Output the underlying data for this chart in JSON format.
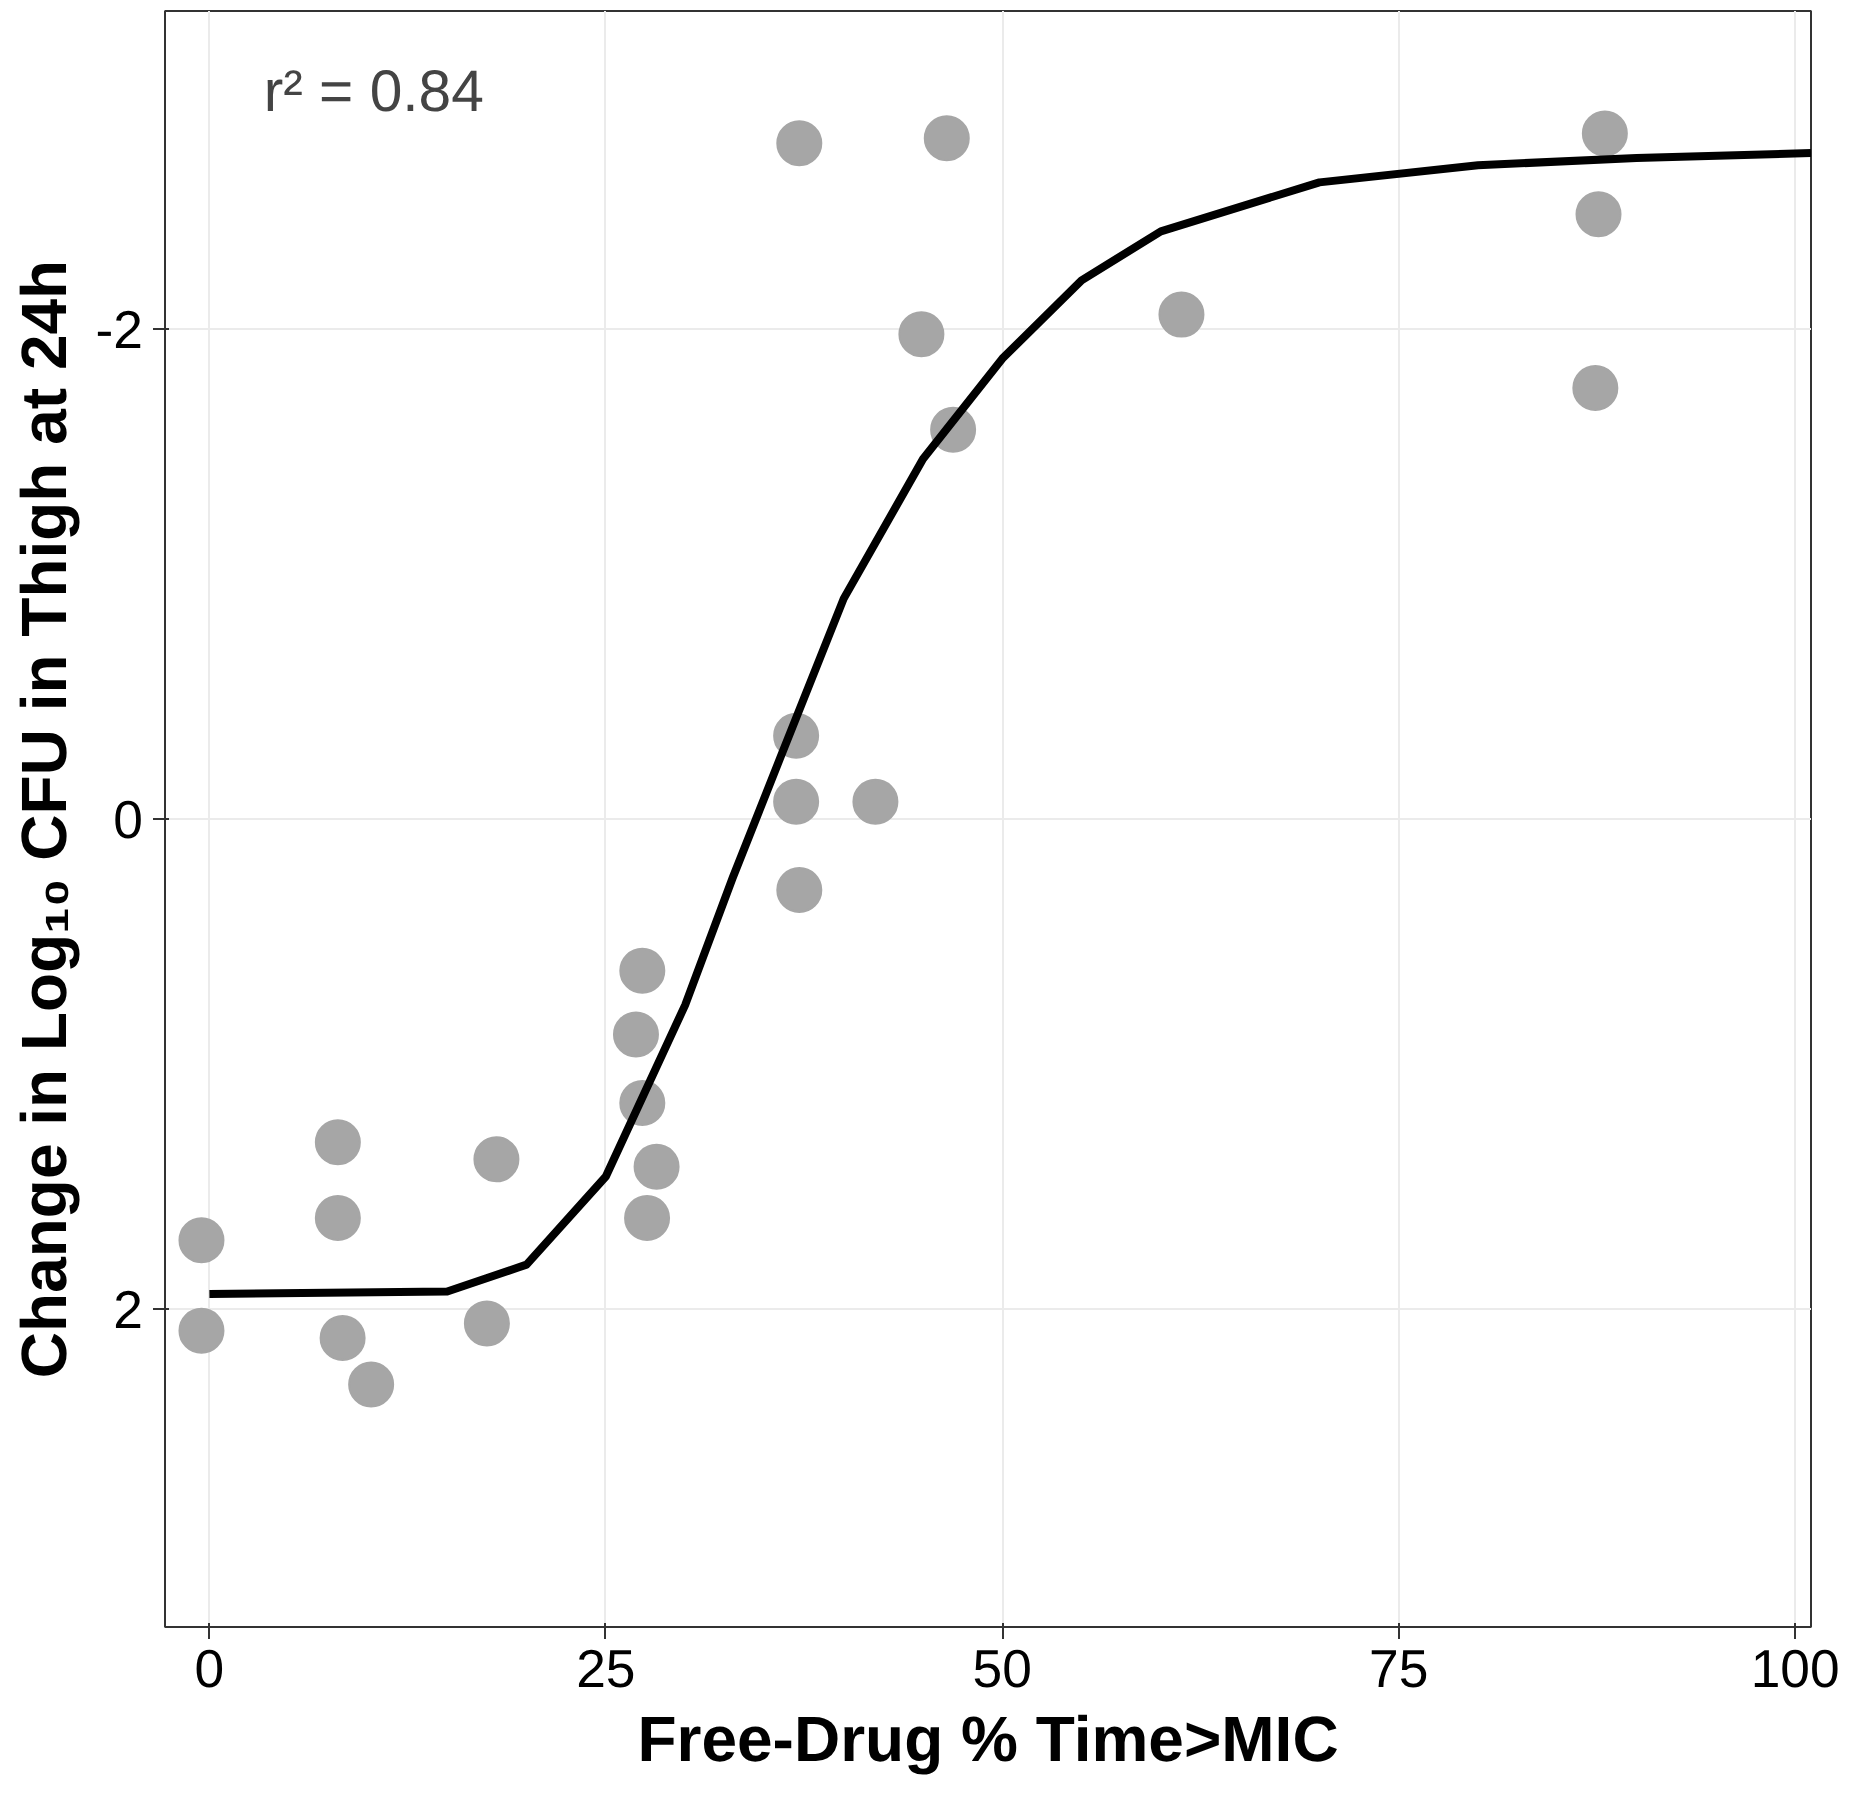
{
  "chart_data": {
    "type": "scatter",
    "xlabel": "Free-Drug % Time>MIC",
    "ylabel": "Change in Log₁₀ CFU in Thigh at 24h",
    "annotations": [
      "r² = 0.84"
    ],
    "xlim": [
      -2.8,
      101
    ],
    "ylim": [
      3.3,
      -3.3
    ],
    "xticks": [
      0,
      25,
      50,
      75,
      100
    ],
    "yticks": [
      2,
      0,
      -2
    ],
    "grid": true,
    "series": [
      {
        "marker": "circle",
        "color": "#a6a6a6",
        "x": [
          -0.5,
          -0.5,
          8.1,
          8.1,
          8.4,
          10.2,
          17.5,
          18.1,
          27.3,
          26.9,
          27.3,
          28.2,
          27.6,
          37.0,
          37.0,
          37.2,
          42.0,
          37.2,
          46.5,
          44.9,
          46.9,
          61.3,
          88.0,
          87.6,
          87.4
        ],
        "values": [
          1.72,
          2.09,
          1.32,
          1.63,
          2.12,
          2.31,
          2.06,
          1.39,
          0.62,
          0.88,
          1.16,
          1.42,
          1.63,
          -0.34,
          -0.07,
          0.29,
          -0.07,
          -2.76,
          -2.78,
          -1.98,
          -1.59,
          -2.06,
          -2.8,
          -2.47,
          -1.76
        ]
      },
      {
        "type": "line",
        "marker": "none",
        "line_style": "solid",
        "color": "#000000",
        "x": [
          0,
          15,
          20,
          25,
          30,
          33,
          36,
          40,
          45,
          50,
          55,
          60,
          70,
          80,
          90,
          101
        ],
        "values": [
          1.94,
          1.93,
          1.82,
          1.46,
          0.76,
          0.24,
          -0.25,
          -0.9,
          -1.47,
          -1.88,
          -2.2,
          -2.4,
          -2.6,
          -2.67,
          -2.7,
          -2.72
        ]
      }
    ]
  }
}
